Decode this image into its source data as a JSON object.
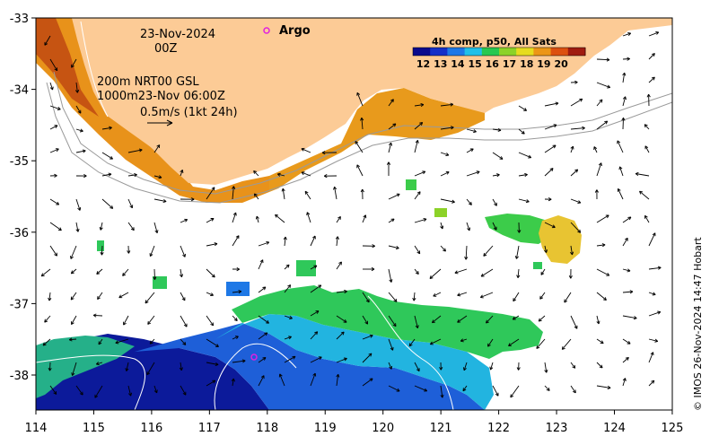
{
  "map": {
    "date_line1": "23-Nov-2024",
    "date_line2": "00Z",
    "contour_label1": "200m  NRT00 GSL",
    "contour_label2": "1000m23-Nov 06:00Z",
    "scale_label": "0.5m/s (1kt 24h)",
    "argo_label": "Argo",
    "credit": "© IMOS 26-Nov-2024 14:47 Hobart",
    "lon_ticks": [
      "114",
      "115",
      "116",
      "117",
      "118",
      "119",
      "120",
      "121",
      "122",
      "123",
      "124",
      "125"
    ],
    "lat_ticks": [
      "-33",
      "-34",
      "-35",
      "-36",
      "-37",
      "-38"
    ],
    "land_color": "#fccb96",
    "argo_color": "#e020e0"
  },
  "colorbar": {
    "title": "4h comp, p50, All Sats",
    "ticks": [
      "12",
      "13",
      "14",
      "15",
      "16",
      "17",
      "18",
      "19",
      "20"
    ],
    "colors": [
      "#0a0a8c",
      "#1530c8",
      "#1e78e6",
      "#20c0e8",
      "#28c850",
      "#8cd228",
      "#e6dc1e",
      "#ec9616",
      "#dc5010",
      "#a01c10"
    ]
  }
}
